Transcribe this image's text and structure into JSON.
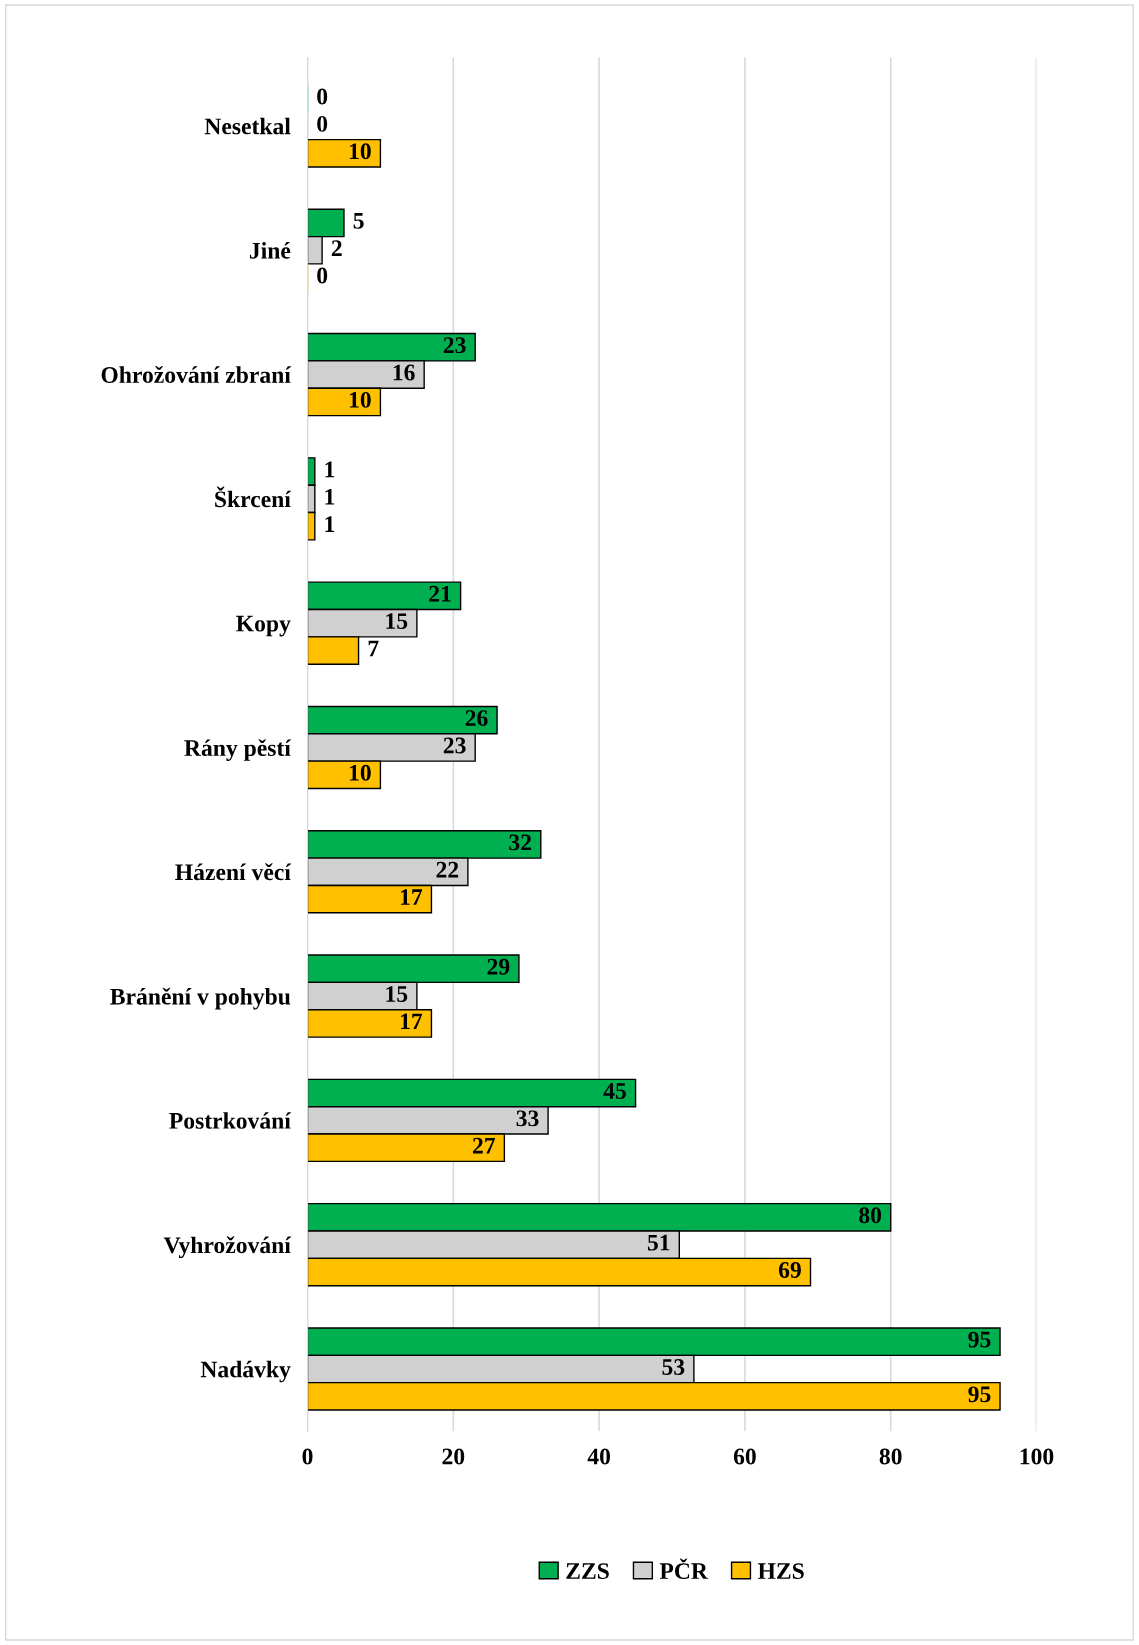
{
  "chart_data": {
    "type": "bar",
    "orientation": "horizontal",
    "categories": [
      "Nesetkal",
      "Jiné",
      "Ohrožování zbraní",
      "Škrcení",
      "Kopy",
      "Rány pěstí",
      "Házení věcí",
      "Bránění v pohybu",
      "Postrkování",
      "Vyhrožování",
      "Nadávky"
    ],
    "series": [
      {
        "name": "ZZS",
        "color": "#00b050",
        "values": [
          0,
          5,
          23,
          1,
          21,
          26,
          32,
          29,
          45,
          80,
          95
        ]
      },
      {
        "name": "PČR",
        "color": "#d0d0d0",
        "values": [
          0,
          2,
          16,
          1,
          15,
          23,
          22,
          15,
          33,
          51,
          53
        ]
      },
      {
        "name": "HZS",
        "color": "#ffc000",
        "values": [
          10,
          0,
          10,
          1,
          7,
          10,
          17,
          17,
          27,
          69,
          95
        ]
      }
    ],
    "xlim": [
      0,
      100
    ],
    "xticks": [
      0,
      20,
      40,
      60,
      80,
      100
    ],
    "grid": "x",
    "legend": "bottom",
    "data_labels": true
  }
}
